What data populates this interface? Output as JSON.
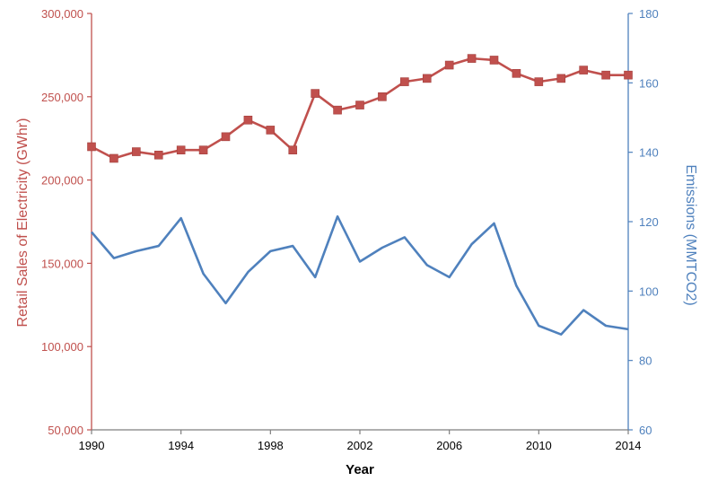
{
  "chart_data": {
    "type": "line",
    "title": "",
    "xlabel": "Year",
    "ylabel_left": "Retail Sales of Electricity (GWhr)",
    "ylabel_right": "Emissions (MMTCO2)",
    "x": [
      1990,
      1991,
      1992,
      1993,
      1994,
      1995,
      1996,
      1997,
      1998,
      1999,
      2000,
      2001,
      2002,
      2003,
      2004,
      2005,
      2006,
      2007,
      2008,
      2009,
      2010,
      2011,
      2012,
      2013,
      2014
    ],
    "xlim": [
      1990,
      2014
    ],
    "x_ticks": [
      "1990",
      "1994",
      "1998",
      "2002",
      "2006",
      "2010",
      "2014"
    ],
    "ylim_left": [
      50000,
      300000
    ],
    "y_ticks_left": [
      "50,000",
      "100,000",
      "150,000",
      "200,000",
      "250,000",
      "300,000"
    ],
    "ylim_right": [
      60,
      180
    ],
    "y_ticks_right": [
      "60",
      "80",
      "100",
      "120",
      "140",
      "160",
      "180"
    ],
    "grid": false,
    "series": [
      {
        "name": "Retail Sales of Electricity (GWhr)",
        "axis": "left",
        "color": "#c0504d",
        "marker": "square",
        "values": [
          220000,
          213000,
          217000,
          215000,
          218000,
          218000,
          226000,
          236000,
          230000,
          218000,
          252000,
          242000,
          245000,
          250000,
          259000,
          261000,
          269000,
          273000,
          272000,
          264000,
          259000,
          261000,
          266000,
          263000,
          263000
        ]
      },
      {
        "name": "Emissions (MMTCO2)",
        "axis": "right",
        "color": "#4f81bd",
        "marker": "none",
        "values": [
          117,
          109.5,
          111.5,
          113,
          121,
          105,
          96.5,
          105.5,
          111.5,
          113,
          104,
          121.5,
          108.5,
          112.5,
          115.5,
          107.5,
          104,
          113.5,
          119.5,
          101.5,
          90,
          87.5,
          94.5,
          90,
          89
        ]
      }
    ],
    "colors": {
      "left_axis": "#c0504d",
      "right_axis": "#4f81bd",
      "x_axis": "#000000"
    }
  }
}
